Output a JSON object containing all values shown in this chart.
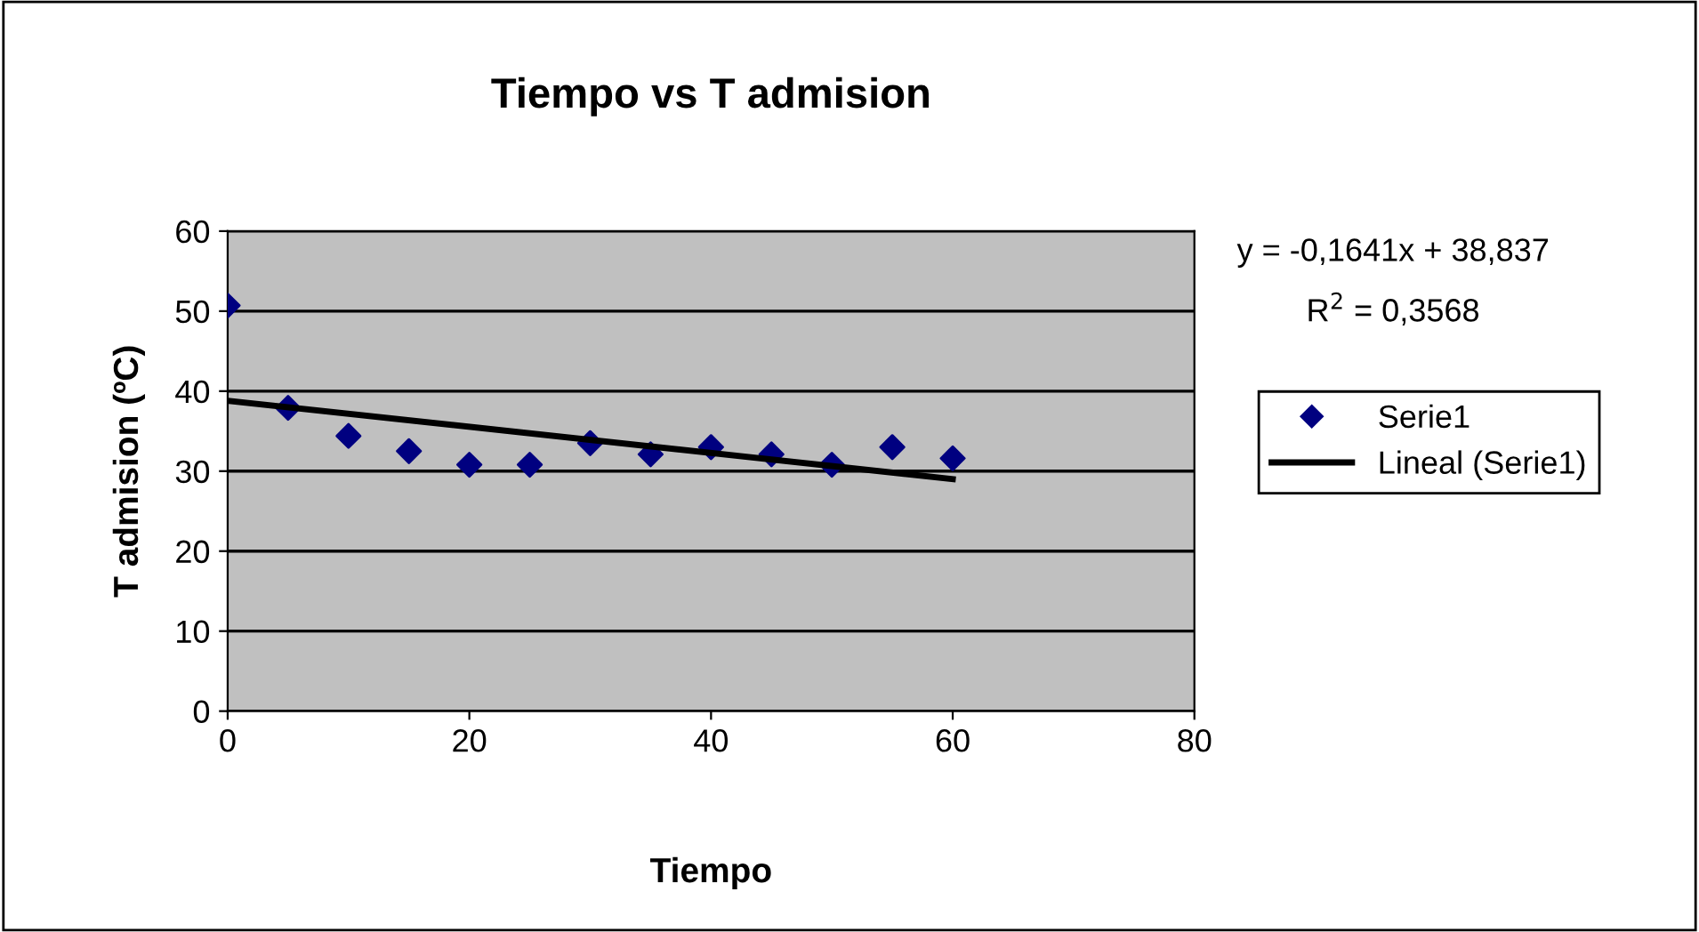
{
  "chart_data": {
    "type": "scatter",
    "title": "Tiempo vs T admision",
    "xlabel": "Tiempo",
    "ylabel": "T admision (ºC)",
    "x": [
      0,
      5,
      10,
      15,
      20,
      25,
      30,
      35,
      40,
      45,
      50,
      55,
      60
    ],
    "series": [
      {
        "name": "Serie1",
        "color": "#000080",
        "marker": "diamond",
        "values": [
          50.7,
          37.9,
          34.4,
          32.5,
          30.8,
          30.8,
          33.5,
          32.1,
          33.0,
          32.1,
          30.8,
          33.0,
          31.6
        ]
      },
      {
        "name": "Lineal (Serie1)",
        "type": "line",
        "color": "#000000",
        "marker": "none",
        "line_style": "solid",
        "x": [
          0,
          60
        ],
        "values": [
          38.8,
          29.0
        ]
      }
    ],
    "annotations": [
      "y = -0,1641x + 38,837",
      "R$^{2}$ = 0,3568"
    ],
    "xlim": [
      0,
      80
    ],
    "xticks": [
      0,
      20,
      40,
      60,
      80
    ],
    "ylim": [
      0,
      60
    ],
    "yticks": [
      0,
      10,
      20,
      30,
      40,
      50,
      60
    ],
    "grid": "y",
    "legend": "right"
  }
}
